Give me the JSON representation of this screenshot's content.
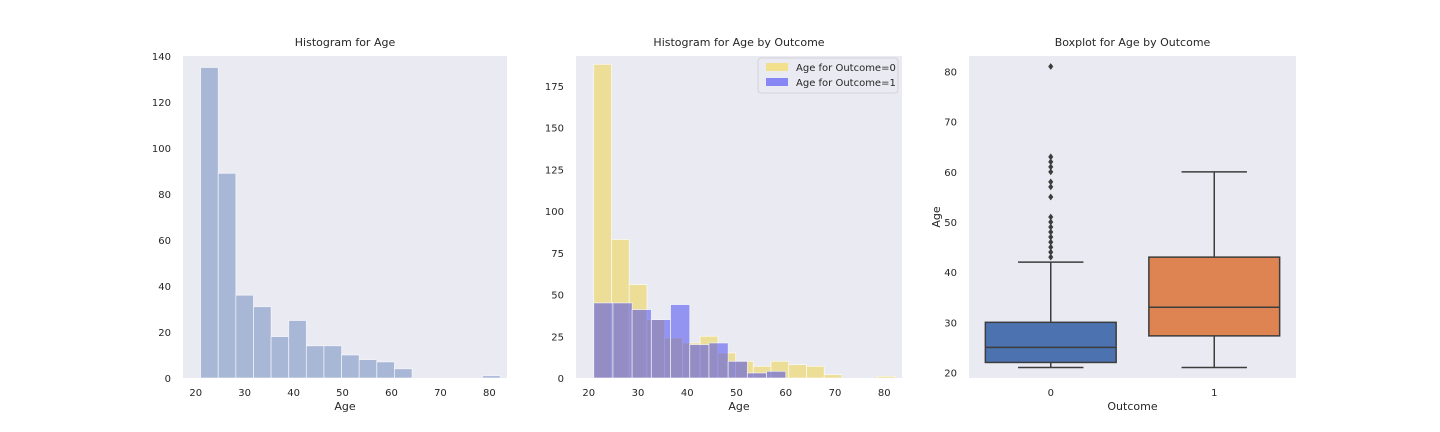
{
  "colors": {
    "background": "#eaeaf2",
    "hist_all": "#a9b7d7",
    "outcome0": "#f2e08c",
    "outcome1": "#8686f5",
    "overlap": "#9b8ec8",
    "box0": "#4c72b0",
    "box1": "#dd8452",
    "whisker": "#3d3d3d"
  },
  "chart_data": [
    {
      "type": "histogram",
      "title": "Histogram for Age",
      "xlabel": "Age",
      "ylabel": "",
      "xlim": [
        17.4,
        83.6
      ],
      "ylim": [
        0,
        140
      ],
      "xticks": [
        20,
        30,
        40,
        50,
        60,
        70,
        80
      ],
      "yticks": [
        0,
        20,
        40,
        60,
        80,
        100,
        120,
        140
      ],
      "grid": false,
      "bin_edges": [
        21.0,
        24.6,
        28.2,
        31.8,
        35.4,
        39.0,
        42.6,
        46.2,
        49.8,
        53.4,
        57.0,
        60.6,
        64.2,
        67.8,
        71.4,
        75.0,
        78.6,
        82.2
      ],
      "series": [
        {
          "values": [
            135,
            89,
            36,
            31,
            18,
            25,
            14,
            14,
            10,
            8,
            7,
            4,
            0,
            0,
            0,
            0,
            1
          ]
        }
      ]
    },
    {
      "type": "histogram",
      "title": "Histogram for Age by Outcome",
      "xlabel": "Age",
      "ylabel": "",
      "xlim": [
        17.4,
        83.6
      ],
      "ylim": [
        0,
        193
      ],
      "xticks": [
        20,
        30,
        40,
        50,
        60,
        70,
        80
      ],
      "yticks": [
        0,
        25,
        50,
        75,
        100,
        125,
        150,
        175
      ],
      "grid": false,
      "legend": "top-right",
      "series": [
        {
          "name": "Age for Outcome=0",
          "bin_edges": [
            21.0,
            24.6,
            28.2,
            31.8,
            35.4,
            39.0,
            42.6,
            46.2,
            49.8,
            53.4,
            57.0,
            60.6,
            64.2,
            67.8,
            71.4,
            75.0,
            78.6,
            82.2
          ],
          "values": [
            188,
            83,
            56,
            35,
            24,
            21,
            25,
            15,
            10,
            7,
            10,
            8,
            7,
            2,
            0,
            0,
            1
          ]
        },
        {
          "name": "Age for Outcome=1",
          "bin_edges": [
            21.0,
            24.9,
            28.8,
            32.7,
            36.6,
            40.5,
            44.4,
            48.3,
            52.2,
            56.1,
            60.0,
            63.9,
            67.8
          ],
          "values": [
            45,
            45,
            41,
            35,
            44,
            20,
            21,
            10,
            3,
            4,
            0,
            0
          ]
        }
      ]
    },
    {
      "type": "boxplot",
      "title": "Boxplot for Age by Outcome",
      "xlabel": "Outcome",
      "ylabel": "Age",
      "categories": [
        "0",
        "1"
      ],
      "ylim": [
        18.9,
        83.1
      ],
      "yticks": [
        20,
        30,
        40,
        50,
        60,
        70,
        80
      ],
      "grid": false,
      "boxes": [
        {
          "category": "0",
          "whislo": 21,
          "q1": 22,
          "med": 25,
          "q3": 30,
          "whishi": 42,
          "fliers": [
            43,
            44,
            45,
            46,
            47,
            48,
            49,
            50,
            51,
            55,
            57,
            58,
            60,
            61,
            62,
            63,
            81
          ]
        },
        {
          "category": "1",
          "whislo": 21,
          "q1": 27.3,
          "med": 33,
          "q3": 43,
          "whishi": 60,
          "fliers": []
        }
      ]
    }
  ]
}
